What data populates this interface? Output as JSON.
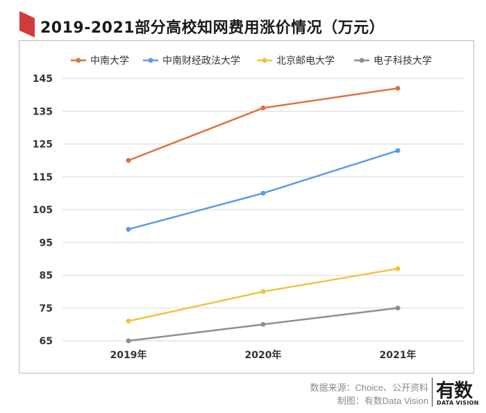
{
  "page": {
    "title": "2019-2021部分高校知网费用涨价情况（万元）",
    "source_line": "数据来源：Choice、公开资料",
    "credit_line": "制图：有数Data Vision",
    "logo_text": "有数",
    "logo_subtext": "DATA VISION"
  },
  "colors": {
    "title_mark": "#d33b3b",
    "grid": "#d9d9d9",
    "axis_text": "#333333"
  },
  "chart_data": {
    "type": "line",
    "title": "2019-2021部分高校知网费用涨价情况（万元）",
    "xlabel": "",
    "ylabel": "",
    "categories": [
      "2019年",
      "2020年",
      "2021年"
    ],
    "yticks": [
      65,
      75,
      85,
      95,
      105,
      115,
      125,
      135,
      145
    ],
    "ylim": [
      65,
      145
    ],
    "grid": true,
    "legend_position": "top",
    "series": [
      {
        "name": "中南大学",
        "color": "#e07040",
        "values": [
          120,
          136,
          142
        ]
      },
      {
        "name": "中南财经政法大学",
        "color": "#5b9be6",
        "values": [
          99,
          110,
          123
        ]
      },
      {
        "name": "北京邮电大学",
        "color": "#f3c23f",
        "values": [
          71,
          80,
          87
        ]
      },
      {
        "name": "电子科技大学",
        "color": "#8e8d96",
        "values": [
          65,
          70,
          75
        ]
      }
    ]
  }
}
